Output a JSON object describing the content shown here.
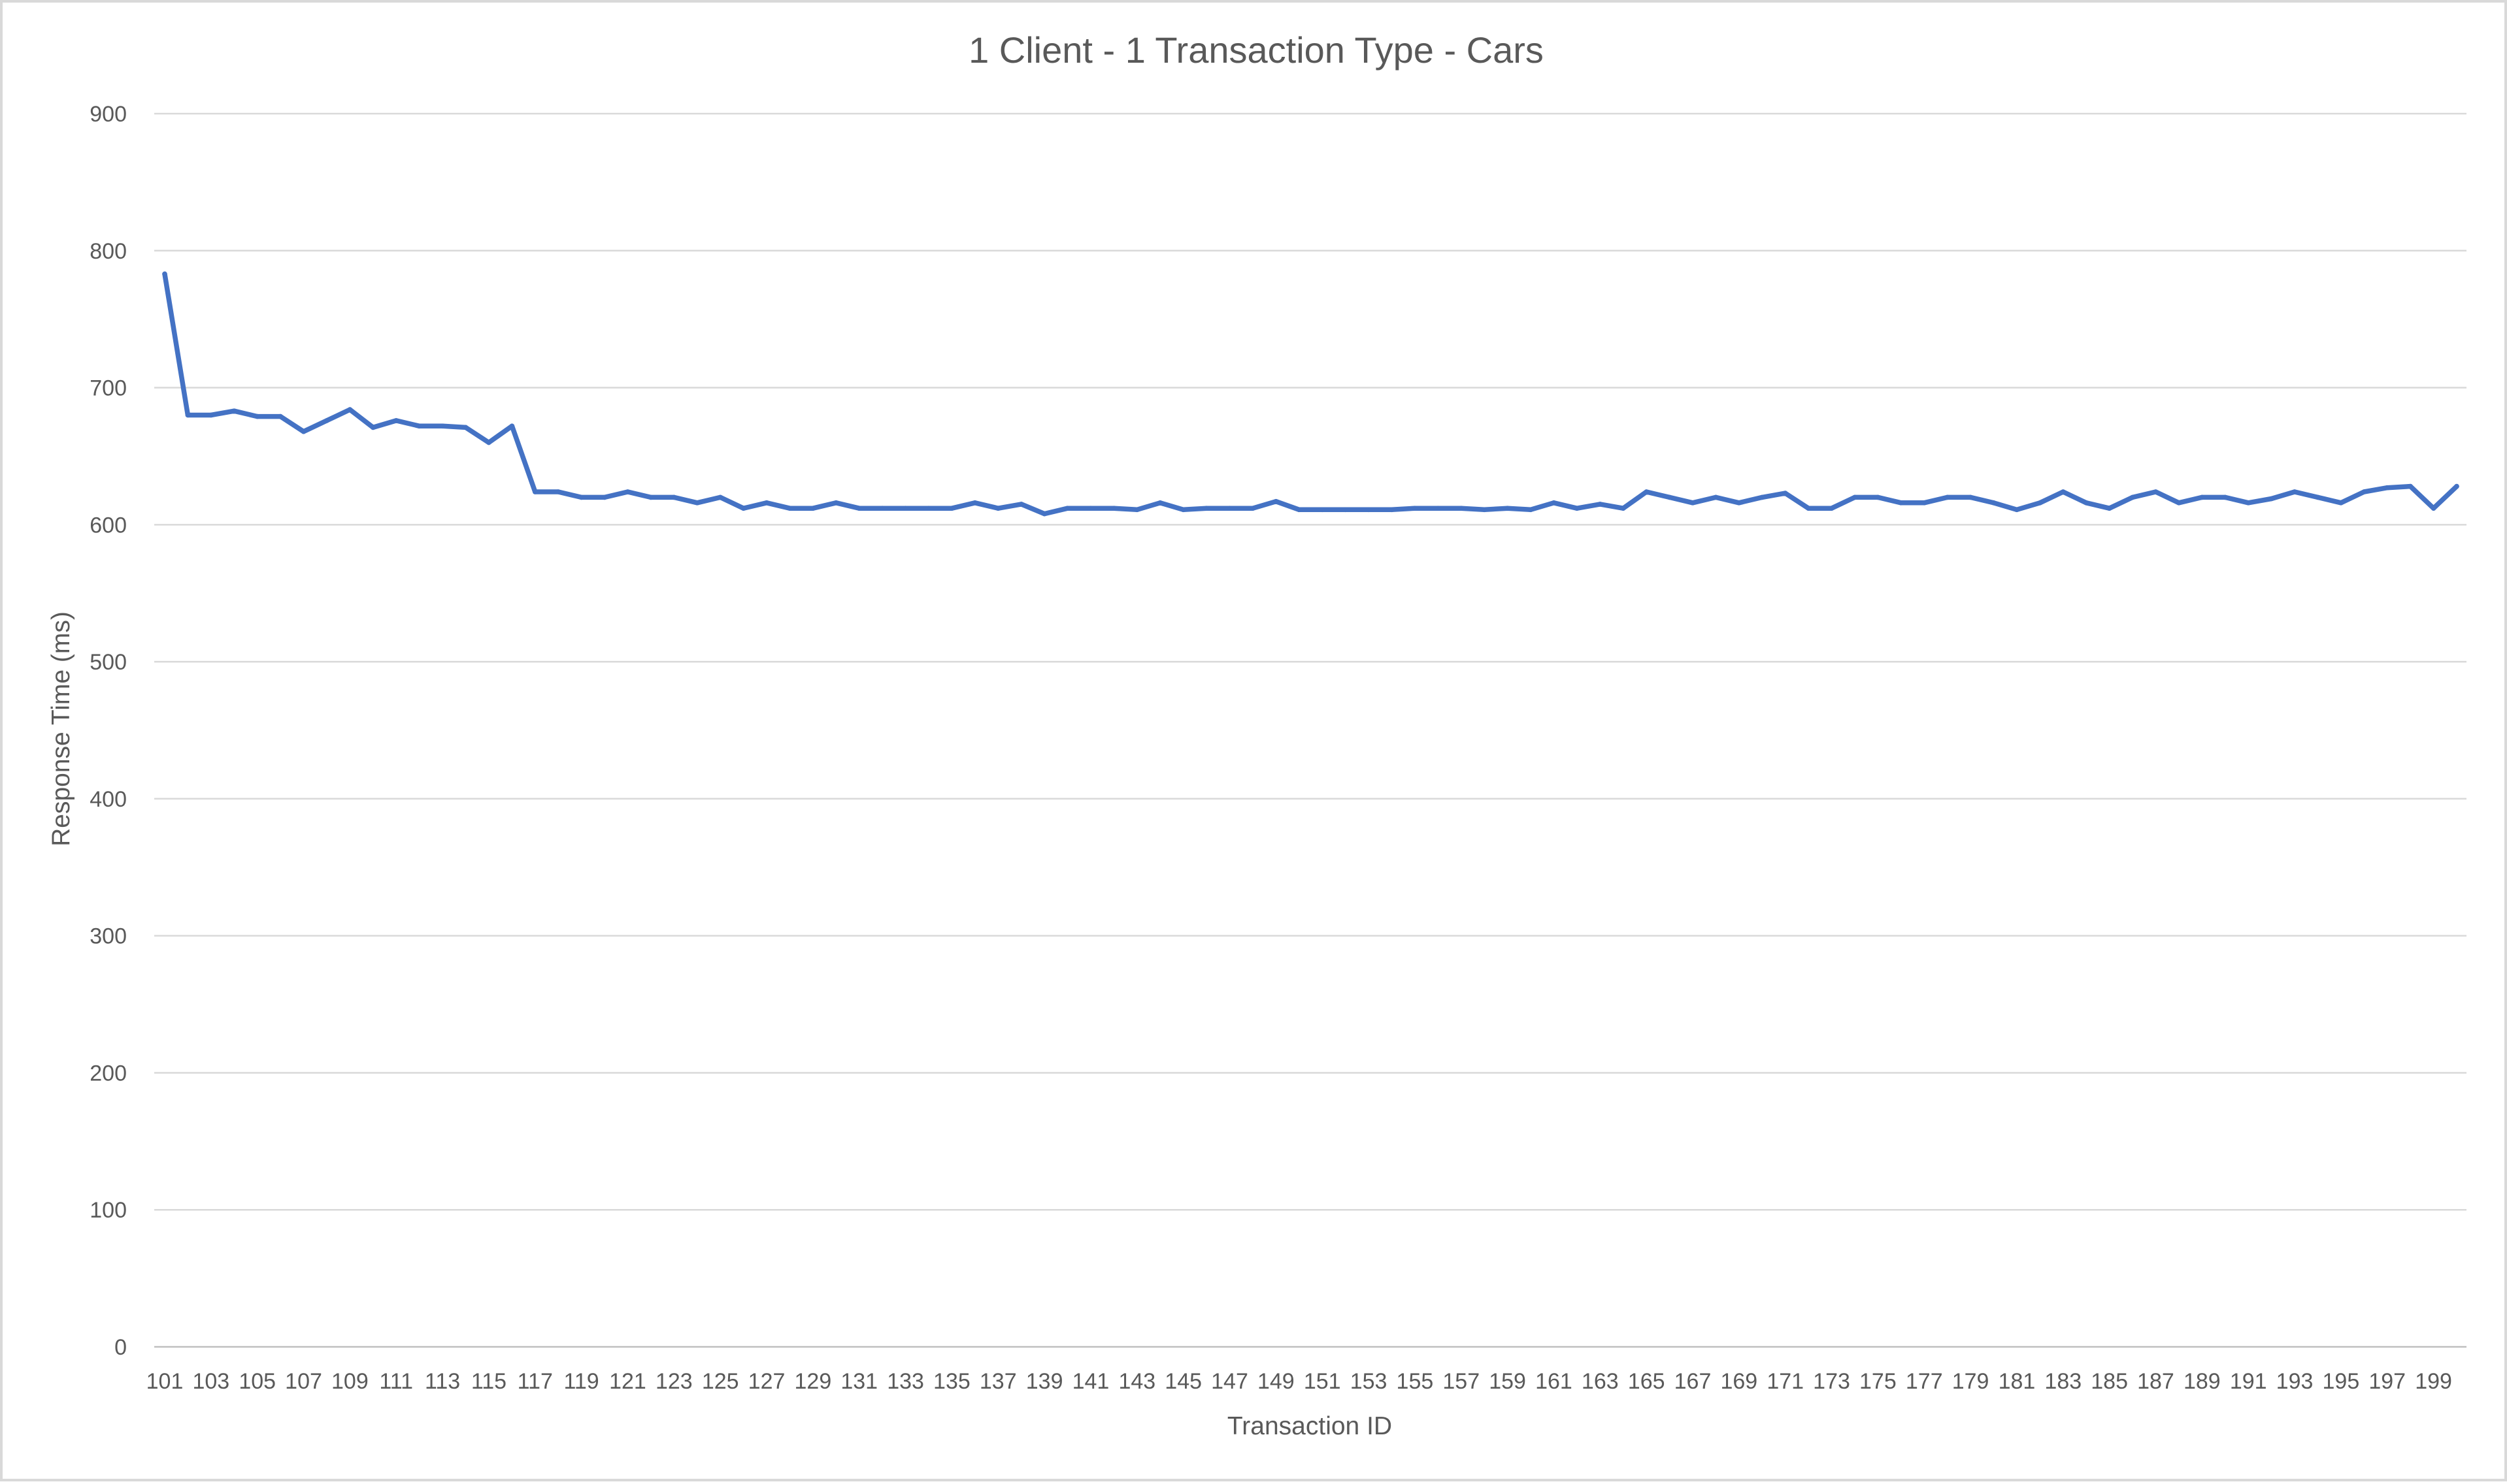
{
  "chart_data": {
    "type": "line",
    "title": "1 Client - 1 Transaction Type - Cars",
    "xlabel": "Transaction ID",
    "ylabel": "Response Time (ms)",
    "ylim": [
      0,
      900
    ],
    "yticks": [
      0,
      100,
      200,
      300,
      400,
      500,
      600,
      700,
      800,
      900
    ],
    "grid": true,
    "legend": "none",
    "x_tick_labels": [
      "101",
      "103",
      "105",
      "107",
      "109",
      "111",
      "113",
      "115",
      "117",
      "119",
      "121",
      "123",
      "125",
      "127",
      "129",
      "131",
      "133",
      "135",
      "137",
      "139",
      "141",
      "143",
      "145",
      "147",
      "149",
      "151",
      "153",
      "155",
      "157",
      "159",
      "161",
      "163",
      "165",
      "167",
      "169",
      "171",
      "173",
      "175",
      "177",
      "179",
      "181",
      "183",
      "185",
      "187",
      "189",
      "191",
      "193",
      "195",
      "197",
      "199"
    ],
    "x": [
      101,
      102,
      103,
      104,
      105,
      106,
      107,
      108,
      109,
      110,
      111,
      112,
      113,
      114,
      115,
      116,
      117,
      118,
      119,
      120,
      121,
      122,
      123,
      124,
      125,
      126,
      127,
      128,
      129,
      130,
      131,
      132,
      133,
      134,
      135,
      136,
      137,
      138,
      139,
      140,
      141,
      142,
      143,
      144,
      145,
      146,
      147,
      148,
      149,
      150,
      151,
      152,
      153,
      154,
      155,
      156,
      157,
      158,
      159,
      160,
      161,
      162,
      163,
      164,
      165,
      166,
      167,
      168,
      169,
      170,
      171,
      172,
      173,
      174,
      175,
      176,
      177,
      178,
      179,
      180,
      181,
      182,
      183,
      184,
      185,
      186,
      187,
      188,
      189,
      190,
      191,
      192,
      193,
      194,
      195,
      196,
      197,
      198,
      199,
      200
    ],
    "series": [
      {
        "color": "#4472c4",
        "values": [
          783,
          680,
          680,
          683,
          679,
          679,
          668,
          676,
          684,
          671,
          676,
          672,
          672,
          671,
          660,
          672,
          624,
          624,
          620,
          620,
          624,
          620,
          620,
          616,
          620,
          612,
          616,
          612,
          612,
          616,
          612,
          612,
          612,
          612,
          612,
          616,
          612,
          615,
          608,
          612,
          612,
          612,
          611,
          616,
          611,
          612,
          612,
          612,
          617,
          611,
          611,
          611,
          611,
          611,
          612,
          612,
          612,
          611,
          612,
          611,
          616,
          612,
          615,
          612,
          624,
          620,
          616,
          620,
          616,
          620,
          623,
          612,
          612,
          620,
          620,
          616,
          616,
          620,
          620,
          616,
          611,
          616,
          624,
          616,
          612,
          620,
          624,
          616,
          620,
          620,
          616,
          619,
          624,
          620,
          616,
          624,
          627,
          628,
          612,
          628
        ]
      }
    ]
  }
}
